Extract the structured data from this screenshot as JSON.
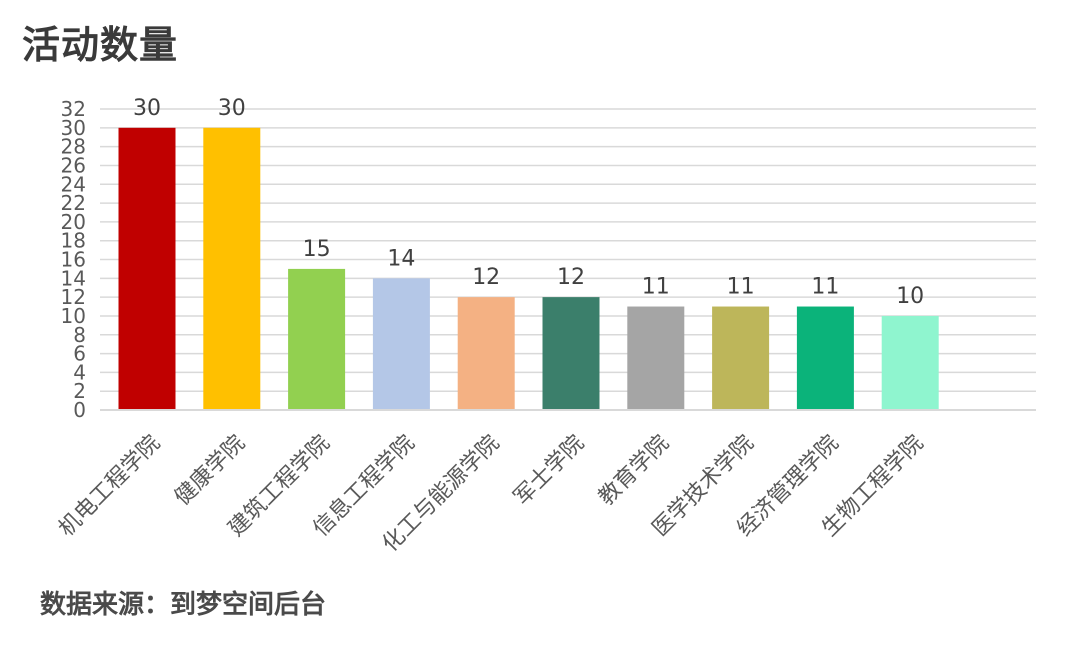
{
  "chart_data": {
    "type": "bar",
    "title": "活动数量",
    "categories": [
      "机电工程学院",
      "健康学院",
      "建筑工程学院",
      "信息工程学院",
      "化工与能源学院",
      "军士学院",
      "教育学院",
      "医学技术学院",
      "经济管理学院",
      "生物工程学院"
    ],
    "values": [
      30,
      30,
      15,
      14,
      12,
      12,
      11,
      11,
      11,
      10
    ],
    "colors": [
      "#c00000",
      "#ffc000",
      "#92d050",
      "#b4c7e7",
      "#f4b183",
      "#3b7f6b",
      "#a5a5a5",
      "#bdb65a",
      "#0bb37a",
      "#8ff5cf"
    ],
    "ylim": [
      0,
      32
    ],
    "yticks": [
      "0",
      "2",
      "4",
      "6",
      "8",
      "10",
      "12",
      "14",
      "16",
      "18",
      "20",
      "22",
      "24",
      "26",
      "28",
      "30",
      "32"
    ],
    "grid": true,
    "data_labels": true,
    "source": "数据来源：到梦空间后台"
  }
}
